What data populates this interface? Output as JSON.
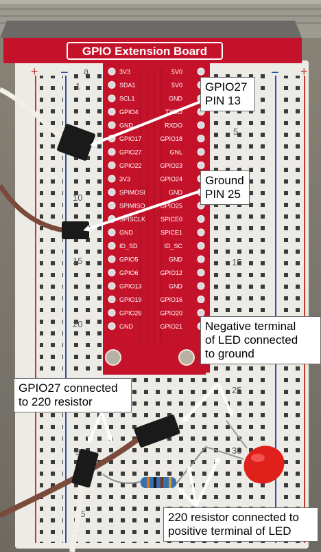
{
  "board": {
    "title": "GPIO Extension Board",
    "left_pins": [
      "3V3",
      "SDA1",
      "SCL1",
      "GPIO4",
      "GND",
      "GPIO17",
      "GPIO27",
      "GPIO22",
      "3V3",
      "SPIMOSI",
      "SPIMISO",
      "SPISCLK",
      "GND",
      "ID_SD",
      "GPIO5",
      "GPIO6",
      "GPIO13",
      "GPIO19",
      "GPIO26",
      "GND"
    ],
    "right_pins": [
      "5V0",
      "5V0",
      "GND",
      "TXDO",
      "RXDO",
      "GPIO18",
      "GNL",
      "GPIO23",
      "GPIO24",
      "GND",
      "GPIO25",
      "SPICE0",
      "SPICE1",
      "ID_SC",
      "GND",
      "GPIO12",
      "GND",
      "GPIO16",
      "GPIO20",
      "GPIO21"
    ],
    "row_numbers": [
      "1",
      "5",
      "10",
      "15",
      "20",
      "25",
      "30",
      "35"
    ],
    "col_letter": "a",
    "plus": "+",
    "minus": "−"
  },
  "callouts": {
    "gpio27_pin": [
      "GPIO27",
      "PIN 13"
    ],
    "ground_pin": [
      "Ground",
      "PIN 25"
    ],
    "negative_terminal": [
      "Negative terminal",
      "of LED connected",
      "to ground"
    ],
    "gpio27_resistor": [
      "GPIO27 connected",
      "to 220 resistor"
    ],
    "resistor_led": [
      "220 resistor connected to",
      "positive terminal of LED"
    ]
  },
  "colors": {
    "board_red": "#c4122a",
    "breadboard": "#ecebe6",
    "rail_blue": "#2b4fa8",
    "rail_red": "#c0392b",
    "arrow": "#ffffff",
    "led": "#e0201a",
    "wire_brown": "#7a4a3a",
    "wire_white": "#f2efe8"
  }
}
